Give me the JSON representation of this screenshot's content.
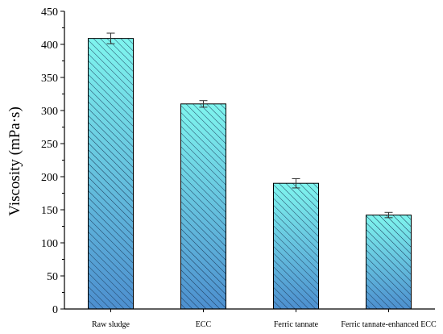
{
  "chart_data": {
    "type": "bar",
    "title": "",
    "xlabel": "",
    "ylabel": "Viscosity (mPa·s)",
    "ylim": [
      0,
      450
    ],
    "yticks": [
      0,
      50,
      100,
      150,
      200,
      250,
      300,
      350,
      400,
      450
    ],
    "categories": [
      "Raw sludge",
      "ECC",
      "Ferric tannate",
      "Ferric tannate-enhanced ECC"
    ],
    "values": [
      409,
      310,
      190,
      142
    ],
    "errors": [
      8,
      5,
      7,
      4
    ],
    "grid": false,
    "legend": "none",
    "colors": {
      "bar_top": "#7ff5ee",
      "bar_bottom": "#4d8fcf",
      "hatch": "#1d3a5a",
      "axis": "#000000"
    }
  }
}
